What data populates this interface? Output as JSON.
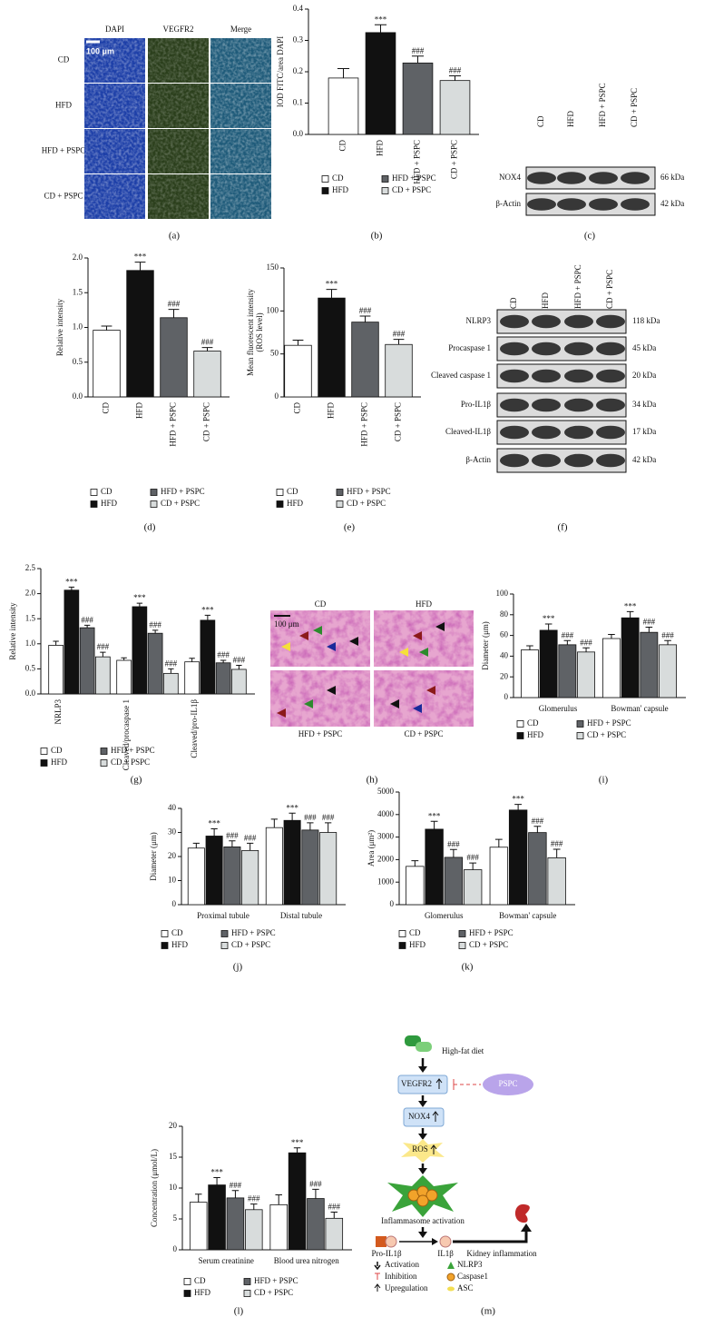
{
  "chart_data": [
    {
      "type": "bar",
      "panel": "(b)",
      "y_label": [
        "IOD FITC/area DAPI"
      ],
      "ylim": [
        0,
        0.4
      ],
      "yticks": [
        {
          "value": 0,
          "label": "0.0"
        },
        0.1,
        0.2,
        0.3,
        0.4
      ],
      "series": [
        {
          "name": "CD",
          "color": "#ffffff",
          "values": [
            0.18
          ],
          "errors": [
            0.03
          ]
        },
        {
          "name": "HFD",
          "color": "#111111",
          "values": [
            0.325
          ],
          "errors": [
            0.025
          ],
          "labels": [
            "***"
          ]
        },
        {
          "name": "HFD + PSPC",
          "color": "#5f6266",
          "values": [
            0.228
          ],
          "errors": [
            0.022
          ],
          "labels": [
            "###"
          ]
        },
        {
          "name": "CD + PSPC",
          "color": "#d8dcdc",
          "values": [
            0.172
          ],
          "errors": [
            0.015
          ],
          "labels": [
            "###"
          ]
        }
      ]
    },
    {
      "type": "bar",
      "panel": "(d)",
      "y_label": [
        "Relative intensity"
      ],
      "ylim": [
        0,
        2
      ],
      "yticks": [
        {
          "value": 0,
          "label": "0.0"
        },
        0.5,
        {
          "value": 1,
          "label": "1.0"
        },
        1.5,
        {
          "value": 2,
          "label": "2.0"
        }
      ],
      "series": [
        {
          "name": "CD",
          "color": "#ffffff",
          "values": [
            0.96
          ],
          "errors": [
            0.06
          ]
        },
        {
          "name": "HFD",
          "color": "#111111",
          "values": [
            1.82
          ],
          "errors": [
            0.12
          ],
          "labels": [
            "***"
          ]
        },
        {
          "name": "HFD + PSPC",
          "color": "#5f6266",
          "values": [
            1.14
          ],
          "errors": [
            0.12
          ],
          "labels": [
            "###"
          ]
        },
        {
          "name": "CD + PSPC",
          "color": "#d8dcdc",
          "values": [
            0.66
          ],
          "errors": [
            0.05
          ],
          "labels": [
            "###"
          ]
        }
      ]
    },
    {
      "type": "bar",
      "panel": "(e)",
      "y_label": [
        "Mean fluorescent intensity",
        "(ROS level)"
      ],
      "ylim": [
        0,
        150
      ],
      "yticks": [
        0,
        50,
        100,
        150
      ],
      "series": [
        {
          "name": "CD",
          "color": "#ffffff",
          "values": [
            60
          ],
          "errors": [
            6
          ]
        },
        {
          "name": "HFD",
          "color": "#111111",
          "values": [
            115
          ],
          "errors": [
            10
          ],
          "labels": [
            "***"
          ]
        },
        {
          "name": "HFD + PSPC",
          "color": "#5f6266",
          "values": [
            87
          ],
          "errors": [
            7
          ],
          "labels": [
            "###"
          ]
        },
        {
          "name": "CD + PSPC",
          "color": "#d8dcdc",
          "values": [
            61
          ],
          "errors": [
            6
          ],
          "labels": [
            "###"
          ]
        }
      ]
    },
    {
      "type": "bar",
      "panel": "(g)",
      "y_label": [
        "Relative intensity"
      ],
      "ylim": [
        0,
        2.5
      ],
      "yticks": [
        {
          "value": 0,
          "label": "0.0"
        },
        0.5,
        {
          "value": 1,
          "label": "1.0"
        },
        1.5,
        {
          "value": 2,
          "label": "2.0"
        },
        2.5
      ],
      "categories": [
        "NRLP3",
        "Cleaved/procaspase 1",
        "Cleaved/pro-IL1β"
      ],
      "series": [
        {
          "name": "CD",
          "color": "#ffffff",
          "values": [
            0.97,
            0.67,
            0.64
          ],
          "errors": [
            0.08,
            0.05,
            0.07
          ]
        },
        {
          "name": "HFD",
          "color": "#111111",
          "values": [
            2.07,
            1.74,
            1.47
          ],
          "errors": [
            0.06,
            0.07,
            0.1
          ],
          "labels": [
            "***",
            "***",
            "***"
          ]
        },
        {
          "name": "HFD + PSPC",
          "color": "#5f6266",
          "values": [
            1.32,
            1.21,
            0.62
          ],
          "errors": [
            0.05,
            0.06,
            0.05
          ],
          "labels": [
            "###",
            "###",
            "###"
          ]
        },
        {
          "name": "CD + PSPC",
          "color": "#d8dcdc",
          "values": [
            0.74,
            0.41,
            0.49
          ],
          "errors": [
            0.09,
            0.09,
            0.08
          ],
          "labels": [
            "###",
            "###",
            "###"
          ]
        }
      ]
    },
    {
      "type": "bar",
      "panel": "(i)",
      "y_label": [
        "Diameter (μm)"
      ],
      "ylim": [
        0,
        100
      ],
      "yticks": [
        0,
        20,
        40,
        60,
        80,
        100
      ],
      "categories": [
        "Glomerulus",
        "Bowman' capsule"
      ],
      "series": [
        {
          "name": "CD",
          "color": "#ffffff",
          "values": [
            46,
            57
          ],
          "errors": [
            4,
            4
          ]
        },
        {
          "name": "HFD",
          "color": "#111111",
          "values": [
            65,
            77
          ],
          "errors": [
            6,
            6
          ],
          "labels": [
            "***",
            "***"
          ]
        },
        {
          "name": "HFD + PSPC",
          "color": "#5f6266",
          "values": [
            51,
            63
          ],
          "errors": [
            4,
            5
          ],
          "labels": [
            "###",
            "###"
          ]
        },
        {
          "name": "CD + PSPC",
          "color": "#d8dcdc",
          "values": [
            44,
            51
          ],
          "errors": [
            4,
            4
          ],
          "labels": [
            "###",
            "###"
          ]
        }
      ]
    },
    {
      "type": "bar",
      "panel": "(j)",
      "y_label": [
        "Diameter (μm)"
      ],
      "ylim": [
        0,
        40
      ],
      "yticks": [
        0,
        10,
        20,
        30,
        40
      ],
      "categories": [
        "Proximal tubule",
        "Distal tubule"
      ],
      "series": [
        {
          "name": "CD",
          "color": "#ffffff",
          "values": [
            23.5,
            32
          ],
          "errors": [
            2,
            3.5
          ]
        },
        {
          "name": "HFD",
          "color": "#111111",
          "values": [
            28.5,
            35
          ],
          "errors": [
            3,
            3
          ],
          "labels": [
            "***",
            "***"
          ]
        },
        {
          "name": "HFD + PSPC",
          "color": "#5f6266",
          "values": [
            24,
            31
          ],
          "errors": [
            2.5,
            3
          ],
          "labels": [
            "###",
            "###"
          ]
        },
        {
          "name": "CD + PSPC",
          "color": "#d8dcdc",
          "values": [
            22.5,
            30
          ],
          "errors": [
            3,
            4
          ],
          "labels": [
            "###",
            "###"
          ]
        }
      ]
    },
    {
      "type": "bar",
      "panel": "(k)",
      "y_label": [
        "Area (μm²)"
      ],
      "ylim": [
        0,
        5000
      ],
      "yticks": [
        0,
        1000,
        2000,
        3000,
        4000,
        5000
      ],
      "categories": [
        "Glomerulus",
        "Bowman' capsule"
      ],
      "series": [
        {
          "name": "CD",
          "color": "#ffffff",
          "values": [
            1700,
            2550
          ],
          "errors": [
            250,
            350
          ]
        },
        {
          "name": "HFD",
          "color": "#111111",
          "values": [
            3350,
            4200
          ],
          "errors": [
            350,
            250
          ],
          "labels": [
            "***",
            "***"
          ]
        },
        {
          "name": "HFD + PSPC",
          "color": "#5f6266",
          "values": [
            2100,
            3200
          ],
          "errors": [
            350,
            280
          ],
          "labels": [
            "###",
            "###"
          ]
        },
        {
          "name": "CD + PSPC",
          "color": "#d8dcdc",
          "values": [
            1550,
            2080
          ],
          "errors": [
            300,
            380
          ],
          "labels": [
            "###",
            "###"
          ]
        }
      ]
    },
    {
      "type": "bar",
      "panel": "(l)",
      "y_label": [
        "Concentration (μmol/L)"
      ],
      "ylim": [
        0,
        20
      ],
      "yticks": [
        0,
        5,
        10,
        15,
        20
      ],
      "categories": [
        "Serum creatinine",
        "Blood urea nitrogen"
      ],
      "series": [
        {
          "name": "CD",
          "color": "#ffffff",
          "values": [
            7.7,
            7.3
          ],
          "errors": [
            1.3,
            1.6
          ]
        },
        {
          "name": "HFD",
          "color": "#111111",
          "values": [
            10.5,
            15.7
          ],
          "errors": [
            1.2,
            0.8
          ],
          "labels": [
            "***",
            "***"
          ]
        },
        {
          "name": "HFD + PSPC",
          "color": "#5f6266",
          "values": [
            8.4,
            8.3
          ],
          "errors": [
            1.2,
            1.5
          ],
          "labels": [
            "###",
            "###"
          ]
        },
        {
          "name": "CD + PSPC",
          "color": "#d8dcdc",
          "values": [
            6.5,
            5.1
          ],
          "errors": [
            0.9,
            1.0
          ],
          "labels": [
            "###",
            "###"
          ]
        }
      ]
    }
  ],
  "panel_a": {
    "panel": "(a)",
    "columns": [
      "DAPI",
      "VEGFR2",
      "Merge"
    ],
    "rows": [
      "CD",
      "HFD",
      "HFD + PSPC",
      "CD + PSPC"
    ],
    "scale_bar": "100 μm"
  },
  "panel_c": {
    "panel": "(c)",
    "lanes": [
      "CD",
      "HFD",
      "HFD + PSPC",
      "CD + PSPC"
    ],
    "bands": [
      {
        "name": "NOX4",
        "size": "66 kDa"
      },
      {
        "name": "β-Actin",
        "size": "42 kDa"
      }
    ]
  },
  "panel_f": {
    "panel": "(f)",
    "lanes": [
      "CD",
      "HFD",
      "HFD + PSPC",
      "CD + PSPC"
    ],
    "bands": [
      {
        "name": "NLRP3",
        "size": "118 kDa"
      },
      {
        "name": "Procaspase 1",
        "size": "45 kDa"
      },
      {
        "name": "Cleaved caspase 1",
        "size": "20 kDa"
      },
      {
        "name": "Pro-IL1β",
        "size": "34 kDa"
      },
      {
        "name": "Cleaved-IL1β",
        "size": "17 kDa"
      },
      {
        "name": "β-Actin",
        "size": "42 kDa"
      }
    ]
  },
  "panel_h": {
    "panel": "(h)",
    "top": [
      "CD",
      "HFD"
    ],
    "bottom": [
      "HFD + PSPC",
      "CD + PSPC"
    ],
    "scale_bar": "100 μm"
  },
  "panel_m": {
    "panel": "(m)",
    "diet": "High-fat diet",
    "vegfr2": "VEGFR2",
    "pspc": "PSPC",
    "nox4": "NOX4",
    "ros": "ROS",
    "inflammasome": "Inflammasome activation",
    "pro_il1b": "Pro-IL1β",
    "il1b": "IL1β",
    "kidney": "Kidney inflammation",
    "legend": [
      "Activation",
      "Inhibition",
      "Upregulation",
      "NLRP3",
      "Caspase1",
      "ASC"
    ]
  }
}
